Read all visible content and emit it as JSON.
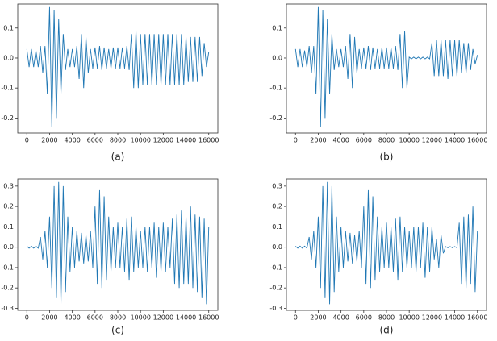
{
  "chart_data": [
    {
      "type": "line",
      "caption": "(a)",
      "color": "#1f77b4",
      "x": [
        0,
        200,
        400,
        600,
        800,
        1000,
        1200,
        1400,
        1600,
        1800,
        2000,
        2200,
        2400,
        2600,
        2800,
        3000,
        3200,
        3400,
        3600,
        3800,
        4000,
        4200,
        4400,
        4600,
        4800,
        5000,
        5200,
        5400,
        5600,
        5800,
        6000,
        6200,
        6400,
        6600,
        6800,
        7000,
        7200,
        7400,
        7600,
        7800,
        8000,
        8200,
        8400,
        8600,
        8800,
        9000,
        9200,
        9400,
        9600,
        9800,
        10000,
        10200,
        10400,
        10600,
        10800,
        11000,
        11200,
        11400,
        11600,
        11800,
        12000,
        12200,
        12400,
        12600,
        12800,
        13000,
        13200,
        13400,
        13600,
        13800,
        14000,
        14200,
        14400,
        14600,
        14800,
        15000,
        15200,
        15400,
        15600,
        15800,
        16000
      ],
      "values": [
        0.03,
        -0.03,
        0.03,
        -0.03,
        0.025,
        -0.03,
        0.04,
        -0.05,
        0.04,
        -0.12,
        0.17,
        -0.23,
        0.16,
        -0.2,
        0.13,
        -0.12,
        0.08,
        -0.04,
        0.03,
        -0.03,
        0.03,
        -0.03,
        0.04,
        -0.07,
        0.08,
        -0.1,
        0.07,
        -0.05,
        0.03,
        -0.035,
        0.035,
        -0.035,
        0.04,
        -0.04,
        0.035,
        -0.035,
        0.03,
        -0.035,
        0.035,
        -0.035,
        0.035,
        -0.035,
        0.035,
        -0.035,
        0.04,
        -0.04,
        0.08,
        -0.1,
        0.09,
        -0.1,
        0.08,
        -0.09,
        0.08,
        -0.09,
        0.08,
        -0.09,
        0.08,
        -0.09,
        0.08,
        -0.09,
        0.08,
        -0.09,
        0.08,
        -0.09,
        0.08,
        -0.09,
        0.08,
        -0.09,
        0.08,
        -0.09,
        0.07,
        -0.08,
        0.07,
        -0.08,
        0.07,
        -0.08,
        0.07,
        -0.06,
        0.05,
        -0.03,
        0.02
      ],
      "xlim": [
        -800,
        16800
      ],
      "ylim": [
        -0.25,
        0.18
      ],
      "xticks": [
        0,
        2000,
        4000,
        6000,
        8000,
        10000,
        12000,
        14000,
        16000
      ],
      "yticks": [
        0.1,
        {
          "value": 0,
          "label": "0.0"
        },
        -0.1,
        -0.2
      ]
    },
    {
      "type": "line",
      "caption": "(b)",
      "color": "#1f77b4",
      "x": [
        0,
        200,
        400,
        600,
        800,
        1000,
        1200,
        1400,
        1600,
        1800,
        2000,
        2200,
        2400,
        2600,
        2800,
        3000,
        3200,
        3400,
        3600,
        3800,
        4000,
        4200,
        4400,
        4600,
        4800,
        5000,
        5200,
        5400,
        5600,
        5800,
        6000,
        6200,
        6400,
        6600,
        6800,
        7000,
        7200,
        7400,
        7600,
        7800,
        8000,
        8200,
        8400,
        8600,
        8800,
        9000,
        9200,
        9400,
        9600,
        9800,
        10000,
        10200,
        10400,
        10600,
        10800,
        11000,
        11200,
        11400,
        11600,
        11800,
        12000,
        12200,
        12400,
        12600,
        12800,
        13000,
        13200,
        13400,
        13600,
        13800,
        14000,
        14200,
        14400,
        14600,
        14800,
        15000,
        15200,
        15400,
        15600,
        15800,
        16000
      ],
      "values": [
        0.03,
        -0.03,
        0.03,
        -0.03,
        0.025,
        -0.03,
        0.04,
        -0.05,
        0.04,
        -0.12,
        0.17,
        -0.23,
        0.16,
        -0.2,
        0.13,
        -0.12,
        0.08,
        -0.04,
        0.03,
        -0.03,
        0.03,
        -0.03,
        0.04,
        -0.07,
        0.08,
        -0.1,
        0.07,
        -0.05,
        0.03,
        -0.035,
        0.035,
        -0.035,
        0.04,
        -0.04,
        0.035,
        -0.035,
        0.03,
        -0.035,
        0.035,
        -0.035,
        0.035,
        -0.035,
        0.035,
        -0.035,
        0.04,
        -0.04,
        0.08,
        -0.1,
        0.09,
        -0.1,
        0.003,
        -0.003,
        0.003,
        -0.003,
        0.003,
        -0.003,
        0.003,
        -0.003,
        0.003,
        -0.003,
        0.05,
        -0.06,
        0.06,
        -0.06,
        0.06,
        -0.06,
        0.06,
        -0.07,
        0.06,
        -0.06,
        0.06,
        -0.06,
        0.06,
        -0.05,
        0.05,
        -0.05,
        0.05,
        -0.04,
        0.03,
        -0.02,
        0.01
      ],
      "xlim": [
        -800,
        16800
      ],
      "ylim": [
        -0.25,
        0.18
      ],
      "xticks": [
        0,
        2000,
        4000,
        6000,
        8000,
        10000,
        12000,
        14000,
        16000
      ],
      "yticks": [
        0.1,
        {
          "value": 0,
          "label": "0.0"
        },
        -0.1,
        -0.2
      ]
    },
    {
      "type": "line",
      "caption": "(c)",
      "color": "#1f77b4",
      "x": [
        0,
        200,
        400,
        600,
        800,
        1000,
        1200,
        1400,
        1600,
        1800,
        2000,
        2200,
        2400,
        2600,
        2800,
        3000,
        3200,
        3400,
        3600,
        3800,
        4000,
        4200,
        4400,
        4600,
        4800,
        5000,
        5200,
        5400,
        5600,
        5800,
        6000,
        6200,
        6400,
        6600,
        6800,
        7000,
        7200,
        7400,
        7600,
        7800,
        8000,
        8200,
        8400,
        8600,
        8800,
        9000,
        9200,
        9400,
        9600,
        9800,
        10000,
        10200,
        10400,
        10600,
        10800,
        11000,
        11200,
        11400,
        11600,
        11800,
        12000,
        12200,
        12400,
        12600,
        12800,
        13000,
        13200,
        13400,
        13600,
        13800,
        14000,
        14200,
        14400,
        14600,
        14800,
        15000,
        15200,
        15400,
        15600,
        15800,
        16000
      ],
      "values": [
        0.005,
        -0.005,
        0.005,
        -0.005,
        0.005,
        -0.005,
        0.05,
        -0.06,
        0.08,
        -0.1,
        0.15,
        -0.2,
        0.3,
        -0.25,
        0.32,
        -0.28,
        0.3,
        -0.22,
        0.15,
        -0.12,
        0.1,
        -0.1,
        0.08,
        -0.07,
        0.07,
        -0.08,
        0.06,
        -0.07,
        0.08,
        -0.1,
        0.2,
        -0.18,
        0.28,
        -0.2,
        0.25,
        -0.16,
        0.15,
        -0.12,
        0.1,
        -0.1,
        0.12,
        -0.1,
        0.1,
        -0.12,
        0.14,
        -0.16,
        0.15,
        -0.12,
        0.1,
        -0.1,
        0.08,
        -0.1,
        0.1,
        -0.12,
        0.1,
        -0.1,
        0.12,
        -0.15,
        0.1,
        -0.12,
        0.12,
        -0.12,
        0.1,
        -0.1,
        0.14,
        -0.18,
        0.16,
        -0.2,
        0.18,
        -0.18,
        0.15,
        -0.18,
        0.2,
        -0.2,
        0.16,
        -0.22,
        0.15,
        -0.25,
        0.14,
        -0.28,
        0.1
      ],
      "xlim": [
        -800,
        16800
      ],
      "ylim": [
        -0.31,
        0.335
      ],
      "xticks": [
        0,
        2000,
        4000,
        6000,
        8000,
        10000,
        12000,
        14000,
        16000
      ],
      "yticks": [
        0.3,
        0.2,
        0.1,
        {
          "value": 0,
          "label": "0.0"
        },
        -0.1,
        -0.2,
        -0.3
      ]
    },
    {
      "type": "line",
      "caption": "(d)",
      "color": "#1f77b4",
      "x": [
        0,
        200,
        400,
        600,
        800,
        1000,
        1200,
        1400,
        1600,
        1800,
        2000,
        2200,
        2400,
        2600,
        2800,
        3000,
        3200,
        3400,
        3600,
        3800,
        4000,
        4200,
        4400,
        4600,
        4800,
        5000,
        5200,
        5400,
        5600,
        5800,
        6000,
        6200,
        6400,
        6600,
        6800,
        7000,
        7200,
        7400,
        7600,
        7800,
        8000,
        8200,
        8400,
        8600,
        8800,
        9000,
        9200,
        9400,
        9600,
        9800,
        10000,
        10200,
        10400,
        10600,
        10800,
        11000,
        11200,
        11400,
        11600,
        11800,
        12000,
        12200,
        12400,
        12600,
        12800,
        13000,
        13200,
        13400,
        13600,
        13800,
        14000,
        14200,
        14400,
        14600,
        14800,
        15000,
        15200,
        15400,
        15600,
        15800,
        16000
      ],
      "values": [
        0.005,
        -0.005,
        0.005,
        -0.005,
        0.005,
        -0.005,
        0.05,
        -0.06,
        0.08,
        -0.1,
        0.15,
        -0.2,
        0.3,
        -0.25,
        0.32,
        -0.28,
        0.3,
        -0.22,
        0.15,
        -0.12,
        0.1,
        -0.1,
        0.08,
        -0.07,
        0.07,
        -0.08,
        0.06,
        -0.07,
        0.08,
        -0.1,
        0.2,
        -0.18,
        0.28,
        -0.2,
        0.25,
        -0.16,
        0.15,
        -0.12,
        0.1,
        -0.1,
        0.12,
        -0.1,
        0.1,
        -0.12,
        0.14,
        -0.16,
        0.15,
        -0.12,
        0.1,
        -0.1,
        0.08,
        -0.1,
        0.1,
        -0.12,
        0.1,
        -0.1,
        0.12,
        -0.15,
        0.1,
        -0.12,
        0.1,
        -0.06,
        0.04,
        -0.1,
        0.06,
        -0.03,
        0.003,
        -0.003,
        0.003,
        -0.003,
        0.003,
        -0.003,
        0.12,
        -0.18,
        0.15,
        -0.2,
        0.16,
        -0.18,
        0.2,
        -0.22,
        0.08
      ],
      "xlim": [
        -800,
        16800
      ],
      "ylim": [
        -0.31,
        0.335
      ],
      "xticks": [
        0,
        2000,
        4000,
        6000,
        8000,
        10000,
        12000,
        14000,
        16000
      ],
      "yticks": [
        0.3,
        0.2,
        0.1,
        {
          "value": 0,
          "label": "0.0"
        },
        -0.1,
        -0.2,
        -0.3
      ]
    }
  ]
}
